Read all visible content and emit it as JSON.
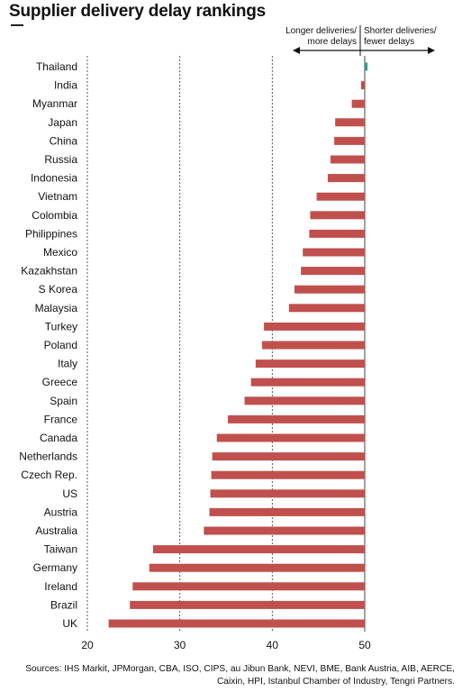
{
  "title": "Supplier delivery delay rankings",
  "legend": {
    "left_lines": [
      "Longer deliveries/",
      "more delays"
    ],
    "right_lines": [
      "Shorter deliveries/",
      "fewer delays"
    ]
  },
  "sources": "Sources: IHS Markit, JPMorgan, CBA, ISO, CIPS, au Jibun Bank, NEVI, BME, Bank Austria, AIB, AERCE, Caixin, HPI, Istanbul Chamber of Industry, Tengri Partners.",
  "colors": {
    "bar": "#c0504d",
    "positive_bar": "#2e9e8e",
    "grid": "#444444"
  },
  "chart_data": {
    "type": "bar",
    "orientation": "horizontal",
    "title": "Supplier delivery delay rankings",
    "categories": [
      "Thailand",
      "India",
      "Myanmar",
      "Japan",
      "China",
      "Russia",
      "Indonesia",
      "Vietnam",
      "Colombia",
      "Philippines",
      "Mexico",
      "Kazakhstan",
      "S Korea",
      "Malaysia",
      "Turkey",
      "Poland",
      "Italy",
      "Greece",
      "Spain",
      "France",
      "Canada",
      "Netherlands",
      "Czech Rep.",
      "US",
      "Austria",
      "Australia",
      "Taiwan",
      "Germany",
      "Ireland",
      "Brazil",
      "UK"
    ],
    "values": [
      50.3,
      49.6,
      48.6,
      46.8,
      46.7,
      46.3,
      46.0,
      44.8,
      44.1,
      44.0,
      43.3,
      43.1,
      42.4,
      41.8,
      39.1,
      38.9,
      38.2,
      37.7,
      37.0,
      35.2,
      34.0,
      33.5,
      33.4,
      33.3,
      33.2,
      32.6,
      27.1,
      26.7,
      24.9,
      24.6,
      22.3
    ],
    "baseline": 50,
    "xlim": [
      20,
      50
    ],
    "xticks": [
      20,
      30,
      40,
      50
    ],
    "grid": "vertical dashed at 30 and 40"
  }
}
